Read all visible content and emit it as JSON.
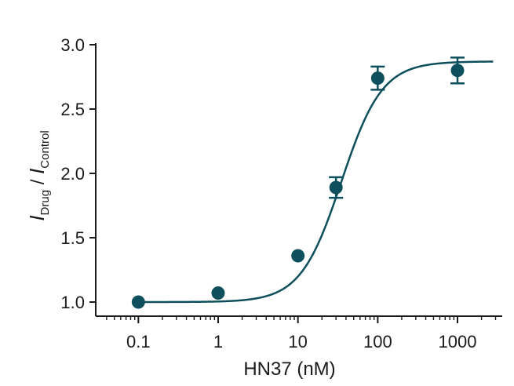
{
  "chart_data": {
    "type": "scatter",
    "xscale": "log",
    "xlim": [
      0.04,
      3000
    ],
    "ylim": [
      0.95,
      3.0
    ],
    "xticks": [
      {
        "value": 0.1,
        "label": "0.1"
      },
      {
        "value": 1,
        "label": "1"
      },
      {
        "value": 10,
        "label": "10"
      },
      {
        "value": 100,
        "label": "100"
      },
      {
        "value": 1000,
        "label": "1000"
      }
    ],
    "yticks": [
      {
        "value": 1.0,
        "label": "1.0"
      },
      {
        "value": 1.5,
        "label": "1.5"
      },
      {
        "value": 2.0,
        "label": "2.0"
      },
      {
        "value": 2.5,
        "label": "2.5"
      },
      {
        "value": 3.0,
        "label": "3.0"
      }
    ],
    "xlabel": "HN37 (nM)",
    "ylabel": {
      "numerator": "I",
      "numerator_sub": "Drug",
      "separator": " / ",
      "denominator": "I",
      "denominator_sub": "Control"
    },
    "points": [
      {
        "x": 0.1,
        "y": 1.0
      },
      {
        "x": 1,
        "y": 1.07
      },
      {
        "x": 10,
        "y": 1.36
      },
      {
        "x": 30,
        "y": 1.89,
        "err": 0.08
      },
      {
        "x": 100,
        "y": 2.74,
        "err": 0.09
      },
      {
        "x": 1000,
        "y": 2.8,
        "err": 0.1
      }
    ],
    "fit": {
      "model": "hill",
      "bottom": 1.0,
      "top": 2.87,
      "ec50": 35,
      "hill": 1.7
    },
    "color": "#0d4f5c",
    "axis_color": "#1a1a1a"
  }
}
